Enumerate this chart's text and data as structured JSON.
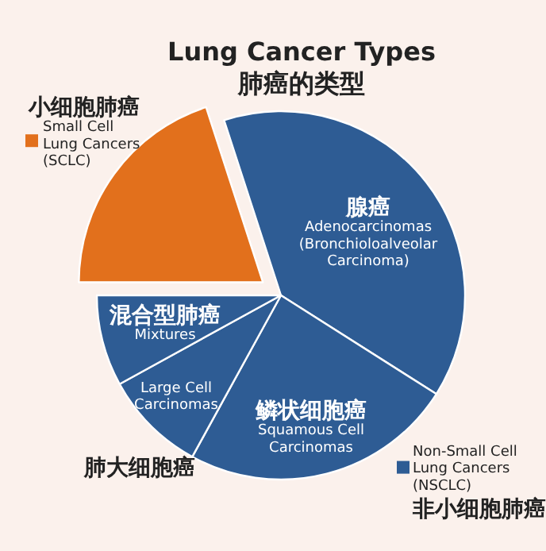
{
  "chart_data": {
    "type": "pie",
    "title": "Lung Cancer Types",
    "subtitle": "肺癌的类型",
    "categories": [
      "腺癌 Adenocarcinomas (Bronchioloalveolar Carcinoma)",
      "鳞状细胞癌 Squamous Cell Carcinomas",
      "Large Cell Carcinomas",
      "混合型肺癌 Mixtures",
      "小细胞肺癌 Small Cell Lung Cancers (SCLC)"
    ],
    "values": [
      39,
      24,
      9,
      8,
      20
    ],
    "colors": [
      "#2e5c94",
      "#2e5c94",
      "#2e5c94",
      "#2e5c94",
      "#e2701c"
    ],
    "annotations": [
      "肺大细胞癌",
      "Non-Small Cell Lung Cancers (NSCLC) 非小细胞肺癌"
    ]
  }
}
